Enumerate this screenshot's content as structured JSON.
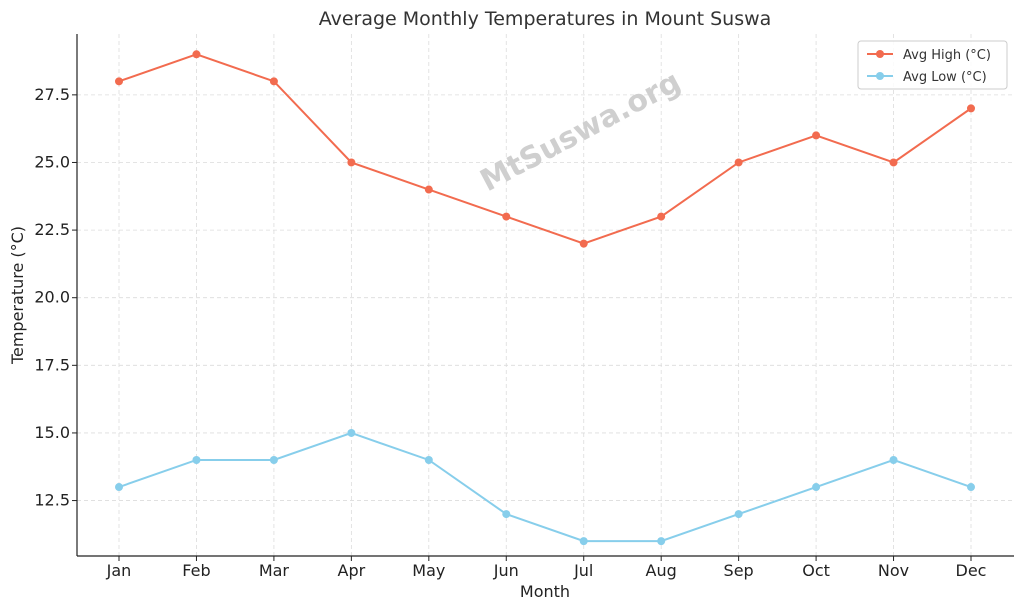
{
  "chart_data": {
    "type": "line",
    "title": "Average Monthly Temperatures in Mount Suswa",
    "xlabel": "Month",
    "ylabel": "Temperature (°C)",
    "categories": [
      "Jan",
      "Feb",
      "Mar",
      "Apr",
      "May",
      "Jun",
      "Jul",
      "Aug",
      "Sep",
      "Oct",
      "Nov",
      "Dec"
    ],
    "series": [
      {
        "name": "Avg High (°C)",
        "color": "#f26b4f",
        "values": [
          28,
          29,
          28,
          25,
          24,
          23,
          22,
          23,
          25,
          26,
          25,
          27
        ]
      },
      {
        "name": "Avg Low (°C)",
        "color": "#87ceeb",
        "values": [
          13,
          14,
          14,
          15,
          14,
          12,
          11,
          11,
          12,
          13,
          14,
          13
        ]
      }
    ],
    "ylim": [
      10.45,
      29.75
    ],
    "yticks": [
      12.5,
      15.0,
      17.5,
      20.0,
      22.5,
      25.0,
      27.5
    ],
    "ytick_labels": [
      "12.5",
      "15.0",
      "17.5",
      "20.0",
      "22.5",
      "25.0",
      "27.5"
    ],
    "grid": true,
    "legend_position": "top-right",
    "watermark": "MtSuswa.org"
  }
}
